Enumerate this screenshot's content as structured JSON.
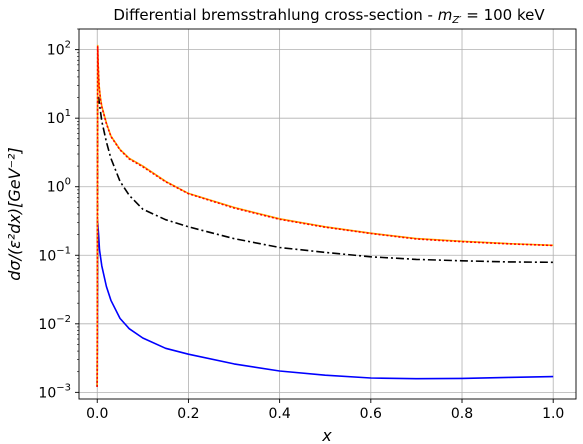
{
  "chart_data": {
    "type": "line",
    "title": "Differential bremsstrahlung cross-section - ",
    "title_math": "m",
    "title_sub": "Z′",
    "title_suffix": " = 100 keV",
    "xlabel": "x",
    "ylabel": "dσ/(ε²dx)[GeV⁻²]",
    "xlim": [
      -0.04,
      1.05
    ],
    "ylim": [
      0.0008,
      200
    ],
    "yscale": "log",
    "grid": true,
    "xticks": [
      {
        "value": 0.0,
        "label": "0.0"
      },
      {
        "value": 0.2,
        "label": "0.2"
      },
      {
        "value": 0.4,
        "label": "0.4"
      },
      {
        "value": 0.6,
        "label": "0.6"
      },
      {
        "value": 0.8,
        "label": "0.8"
      },
      {
        "value": 1.0,
        "label": "1.0"
      }
    ],
    "yticks": [
      {
        "value": 0.001,
        "base": "10",
        "exp": "−3"
      },
      {
        "value": 0.01,
        "base": "10",
        "exp": "−2"
      },
      {
        "value": 0.1,
        "base": "10",
        "exp": "−1"
      },
      {
        "value": 1,
        "base": "10",
        "exp": "0"
      },
      {
        "value": 10,
        "base": "10",
        "exp": "1"
      },
      {
        "value": 100,
        "base": "10",
        "exp": "2"
      }
    ],
    "series": [
      {
        "color": "#0000ff",
        "style": "solid",
        "x": [
          0.0,
          0.001,
          0.003,
          0.005,
          0.01,
          0.02,
          0.03,
          0.05,
          0.07,
          0.1,
          0.15,
          0.2,
          0.3,
          0.4,
          0.5,
          0.6,
          0.7,
          0.8,
          0.9,
          1.0
        ],
        "y": [
          0.0012,
          0.3,
          0.2,
          0.12,
          0.07,
          0.035,
          0.022,
          0.012,
          0.0085,
          0.0062,
          0.0044,
          0.0036,
          0.0026,
          0.00205,
          0.00178,
          0.00162,
          0.00158,
          0.0016,
          0.00165,
          0.0017
        ]
      },
      {
        "color": "#000000",
        "style": "dashdot",
        "x": [
          0.0,
          0.001,
          0.003,
          0.005,
          0.01,
          0.02,
          0.03,
          0.05,
          0.07,
          0.1,
          0.15,
          0.2,
          0.3,
          0.4,
          0.5,
          0.6,
          0.7,
          0.8,
          0.9,
          1.0
        ],
        "y": [
          0.0012,
          18,
          20,
          16,
          9,
          4.5,
          2.6,
          1.2,
          0.75,
          0.47,
          0.33,
          0.26,
          0.175,
          0.13,
          0.11,
          0.095,
          0.087,
          0.083,
          0.08,
          0.079
        ]
      },
      {
        "color": "#ffa500",
        "style": "solid",
        "x": [
          0.0,
          0.001,
          0.002,
          0.004,
          0.007,
          0.01,
          0.02,
          0.03,
          0.05,
          0.07,
          0.1,
          0.15,
          0.2,
          0.3,
          0.4,
          0.5,
          0.6,
          0.7,
          0.8,
          0.9,
          1.0
        ],
        "y": [
          0.0012,
          115,
          60,
          30,
          20,
          15,
          8.5,
          5.5,
          3.5,
          2.6,
          2.0,
          1.2,
          0.8,
          0.5,
          0.34,
          0.26,
          0.21,
          0.175,
          0.16,
          0.148,
          0.14
        ]
      },
      {
        "color": "#ff0000",
        "style": "dotted",
        "x": [
          0.0,
          0.001,
          0.002,
          0.004,
          0.007,
          0.01,
          0.02,
          0.03,
          0.05,
          0.07,
          0.1,
          0.15,
          0.2,
          0.3,
          0.4,
          0.5,
          0.6,
          0.7,
          0.8,
          0.9,
          1.0
        ],
        "y": [
          0.0012,
          110,
          58,
          29,
          19,
          14.5,
          8.3,
          5.4,
          3.45,
          2.55,
          1.95,
          1.18,
          0.79,
          0.49,
          0.335,
          0.257,
          0.208,
          0.173,
          0.158,
          0.147,
          0.139
        ]
      }
    ]
  }
}
